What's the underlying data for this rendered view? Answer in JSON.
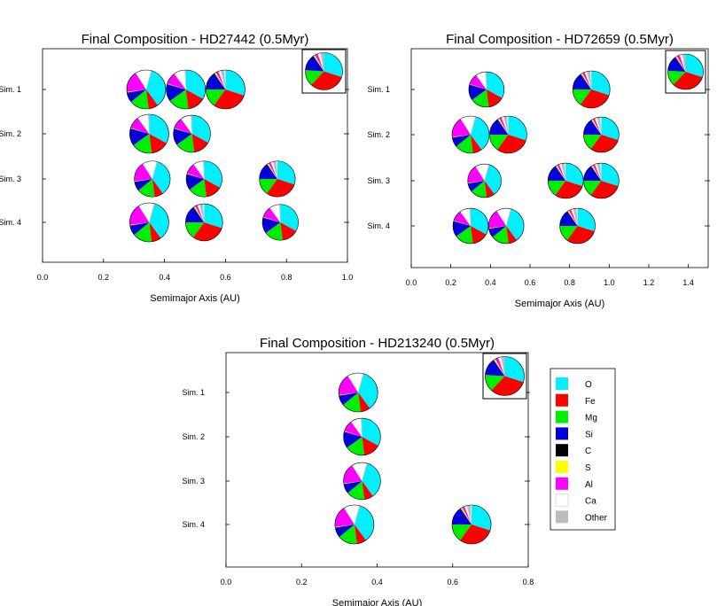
{
  "element_colors": {
    "O": "#00f0ff",
    "Fe": "#ff0000",
    "Mg": "#00ee00",
    "Si": "#0000dd",
    "C": "#000000",
    "S": "#ffff00",
    "Al": "#ff00ff",
    "Ca": "#ffffff",
    "Other": "#bbbbbb"
  },
  "legend": {
    "placement": "right of bottom chart",
    "entries": [
      "O",
      "Fe",
      "Mg",
      "Si",
      "C",
      "S",
      "Al",
      "Ca",
      "Other"
    ]
  },
  "compositions": {
    "oxygen_rich": {
      "O": 0.4,
      "Fe": 0.08,
      "Mg": 0.16,
      "Si": 0.08,
      "C": 0.005,
      "S": 0.005,
      "Al": 0.18,
      "Ca": 0.13,
      "Other": 0.01
    },
    "mixed": {
      "O": 0.33,
      "Fe": 0.15,
      "Mg": 0.17,
      "Si": 0.14,
      "C": 0.005,
      "S": 0.005,
      "Al": 0.1,
      "Ca": 0.09,
      "Other": 0.01
    },
    "iron_rich": {
      "O": 0.3,
      "Fe": 0.3,
      "Mg": 0.15,
      "Si": 0.15,
      "C": 0.005,
      "S": 0.015,
      "Al": 0.02,
      "Ca": 0.02,
      "Other": 0.03
    },
    "inset": {
      "O": 0.3,
      "Fe": 0.32,
      "Mg": 0.14,
      "Si": 0.14,
      "C": 0.005,
      "S": 0.015,
      "Al": 0.025,
      "Ca": 0.025,
      "Other": 0.03
    }
  },
  "chart_data": [
    {
      "type": "scatter",
      "title": "Final Composition - HD27442 (0.5Myr)",
      "xlabel": "Semimajor Axis (AU)",
      "ylabel": "",
      "xlim": [
        0.0,
        1.0
      ],
      "x_ticks": [
        "0.0",
        "0.2",
        "0.4",
        "0.6",
        "0.8",
        "1.0"
      ],
      "x_tick_values": [
        0.0,
        0.2,
        0.4,
        0.6,
        0.8,
        1.0
      ],
      "rows": [
        "Sim. 1",
        "Sim. 2",
        "Sim. 3",
        "Sim. 4"
      ],
      "inset": "inset",
      "planets": [
        {
          "sim": 1,
          "a": 0.34,
          "mass": 1.0,
          "comp": "oxygen_rich"
        },
        {
          "sim": 1,
          "a": 0.47,
          "mass": 1.0,
          "comp": "mixed"
        },
        {
          "sim": 1,
          "a": 0.6,
          "mass": 1.0,
          "comp": "iron_rich"
        },
        {
          "sim": 2,
          "a": 0.35,
          "mass": 1.0,
          "comp": "mixed"
        },
        {
          "sim": 2,
          "a": 0.49,
          "mass": 0.95,
          "comp": "mixed"
        },
        {
          "sim": 3,
          "a": 0.36,
          "mass": 0.92,
          "comp": "oxygen_rich"
        },
        {
          "sim": 3,
          "a": 0.53,
          "mass": 0.92,
          "comp": "mixed"
        },
        {
          "sim": 3,
          "a": 0.77,
          "mass": 0.92,
          "comp": "iron_rich"
        },
        {
          "sim": 4,
          "a": 0.35,
          "mass": 1.0,
          "comp": "oxygen_rich"
        },
        {
          "sim": 4,
          "a": 0.53,
          "mass": 0.95,
          "comp": "iron_rich"
        },
        {
          "sim": 4,
          "a": 0.78,
          "mass": 0.92,
          "comp": "mixed"
        }
      ]
    },
    {
      "type": "scatter",
      "title": "Final Composition - HD72659 (0.5Myr)",
      "xlabel": "Semimajor Axis (AU)",
      "ylabel": "",
      "xlim": [
        0.0,
        1.5
      ],
      "x_ticks": [
        "0.0",
        "0.2",
        "0.4",
        "0.6",
        "0.8",
        "1.0",
        "1.2",
        "1.4"
      ],
      "x_tick_values": [
        0.0,
        0.2,
        0.4,
        0.6,
        0.8,
        1.0,
        1.2,
        1.4
      ],
      "rows": [
        "Sim. 1",
        "Sim. 2",
        "Sim. 3",
        "Sim. 4"
      ],
      "inset": "inset",
      "planets": [
        {
          "sim": 1,
          "a": 0.38,
          "mass": 0.95,
          "comp": "mixed"
        },
        {
          "sim": 1,
          "a": 0.91,
          "mass": 1.0,
          "comp": "iron_rich"
        },
        {
          "sim": 2,
          "a": 0.3,
          "mass": 1.0,
          "comp": "oxygen_rich"
        },
        {
          "sim": 2,
          "a": 0.49,
          "mass": 1.0,
          "comp": "iron_rich"
        },
        {
          "sim": 2,
          "a": 0.96,
          "mass": 0.95,
          "comp": "iron_rich"
        },
        {
          "sim": 3,
          "a": 0.37,
          "mass": 0.9,
          "comp": "oxygen_rich"
        },
        {
          "sim": 3,
          "a": 0.78,
          "mass": 0.95,
          "comp": "iron_rich"
        },
        {
          "sim": 3,
          "a": 0.96,
          "mass": 0.95,
          "comp": "iron_rich"
        },
        {
          "sim": 4,
          "a": 0.3,
          "mass": 0.95,
          "comp": "mixed"
        },
        {
          "sim": 4,
          "a": 0.48,
          "mass": 0.95,
          "comp": "oxygen_rich"
        },
        {
          "sim": 4,
          "a": 0.84,
          "mass": 0.95,
          "comp": "iron_rich"
        }
      ]
    },
    {
      "type": "scatter",
      "title": "Final Composition - HD213240 (0.5Myr)",
      "xlabel": "Semimajor Axis (AU)",
      "ylabel": "",
      "xlim": [
        0.0,
        0.8
      ],
      "x_ticks": [
        "0.0",
        "0.2",
        "0.4",
        "0.6",
        "0.8"
      ],
      "x_tick_values": [
        0.0,
        0.2,
        0.4,
        0.6,
        0.8
      ],
      "rows": [
        "Sim. 1",
        "Sim. 2",
        "Sim. 3",
        "Sim. 4"
      ],
      "inset": "inset",
      "planets": [
        {
          "sim": 1,
          "a": 0.35,
          "mass": 1.0,
          "comp": "oxygen_rich"
        },
        {
          "sim": 2,
          "a": 0.36,
          "mass": 0.95,
          "comp": "mixed"
        },
        {
          "sim": 3,
          "a": 0.36,
          "mass": 0.95,
          "comp": "oxygen_rich"
        },
        {
          "sim": 4,
          "a": 0.34,
          "mass": 1.0,
          "comp": "oxygen_rich"
        },
        {
          "sim": 4,
          "a": 0.65,
          "mass": 1.0,
          "comp": "iron_rich"
        }
      ]
    }
  ]
}
